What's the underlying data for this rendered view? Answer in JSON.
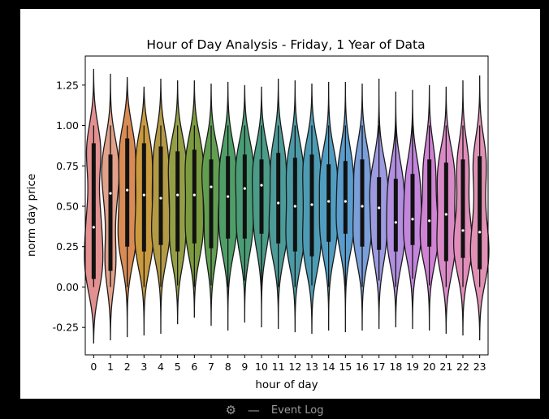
{
  "chart_data": {
    "type": "violin",
    "title": "Hour of Day Analysis - Friday, 1 Year of Data",
    "xlabel": "hour of day",
    "ylabel": "norm day price",
    "categories": [
      "0",
      "1",
      "2",
      "3",
      "4",
      "5",
      "6",
      "7",
      "8",
      "9",
      "10",
      "11",
      "12",
      "13",
      "14",
      "15",
      "16",
      "17",
      "18",
      "19",
      "20",
      "21",
      "22",
      "23"
    ],
    "ylim": [
      -0.42,
      1.43
    ],
    "yticks": [
      "-0.25",
      "0.00",
      "0.25",
      "0.50",
      "0.75",
      "1.00",
      "1.25"
    ],
    "yticks_values": [
      -0.25,
      0.0,
      0.25,
      0.5,
      0.75,
      1.0,
      1.25
    ],
    "grid": false,
    "colors": [
      "#e39090",
      "#e2a18a",
      "#d98b53",
      "#c99a3e",
      "#b39a45",
      "#949f45",
      "#7c9b3f",
      "#629e52",
      "#4f9e68",
      "#4a9d76",
      "#4b9c88",
      "#4c9b98",
      "#4c9aa6",
      "#4e9bb4",
      "#519dc0",
      "#5a9ccd",
      "#7a9fd9",
      "#9e9ae0",
      "#b28fdf",
      "#c386dc",
      "#d082d3",
      "#d98ac6",
      "#e18db9",
      "#e091b4"
    ],
    "median": [
      0.37,
      0.58,
      0.6,
      0.57,
      0.55,
      0.57,
      0.57,
      0.62,
      0.56,
      0.61,
      0.63,
      0.52,
      0.5,
      0.51,
      0.53,
      0.53,
      0.5,
      0.49,
      0.4,
      0.42,
      0.41,
      0.45,
      0.35,
      0.34
    ],
    "q1": [
      0.05,
      0.1,
      0.25,
      0.22,
      0.26,
      0.22,
      0.27,
      0.24,
      0.3,
      0.3,
      0.33,
      0.27,
      0.22,
      0.19,
      0.28,
      0.33,
      0.25,
      0.23,
      0.22,
      0.26,
      0.25,
      0.16,
      0.18,
      0.11
    ],
    "q3": [
      0.89,
      0.82,
      0.92,
      0.89,
      0.87,
      0.84,
      0.85,
      0.79,
      0.81,
      0.82,
      0.79,
      0.83,
      0.8,
      0.82,
      0.76,
      0.78,
      0.79,
      0.68,
      0.67,
      0.7,
      0.79,
      0.77,
      0.79,
      0.81
    ],
    "whisker_low": [
      0.0,
      0.0,
      0.0,
      0.0,
      0.0,
      0.01,
      0.0,
      0.01,
      0.0,
      0.04,
      0.0,
      0.0,
      0.0,
      0.01,
      0.0,
      0.0,
      0.0,
      0.04,
      0.0,
      0.05,
      0.01,
      0.0,
      0.0,
      0.0
    ],
    "whisker_high": [
      1.0,
      1.0,
      1.0,
      1.0,
      1.0,
      1.0,
      1.0,
      1.0,
      1.0,
      1.0,
      1.0,
      1.0,
      1.0,
      1.0,
      1.0,
      1.0,
      1.0,
      1.0,
      1.0,
      1.0,
      1.0,
      1.0,
      1.0,
      1.0
    ],
    "violin_min": [
      -0.35,
      -0.33,
      -0.31,
      -0.3,
      -0.29,
      -0.23,
      -0.19,
      -0.24,
      -0.27,
      -0.22,
      -0.25,
      -0.26,
      -0.28,
      -0.29,
      -0.27,
      -0.28,
      -0.27,
      -0.26,
      -0.25,
      -0.26,
      -0.27,
      -0.29,
      -0.3,
      -0.33
    ],
    "violin_max": [
      1.35,
      1.32,
      1.3,
      1.24,
      1.29,
      1.28,
      1.28,
      1.26,
      1.27,
      1.25,
      1.24,
      1.29,
      1.28,
      1.26,
      1.27,
      1.27,
      1.26,
      1.29,
      1.21,
      1.22,
      1.25,
      1.24,
      1.28,
      1.31
    ],
    "violin_width": [
      0.55,
      0.52,
      0.55,
      0.55,
      0.55,
      0.55,
      0.55,
      0.55,
      0.55,
      0.55,
      0.55,
      0.55,
      0.55,
      0.55,
      0.55,
      0.55,
      0.55,
      0.55,
      0.55,
      0.55,
      0.55,
      0.55,
      0.55,
      0.55
    ]
  },
  "toolbar": {
    "gear_icon": "gear-icon",
    "dash_icon": "minimize-icon",
    "event_log_label": "Event Log"
  }
}
